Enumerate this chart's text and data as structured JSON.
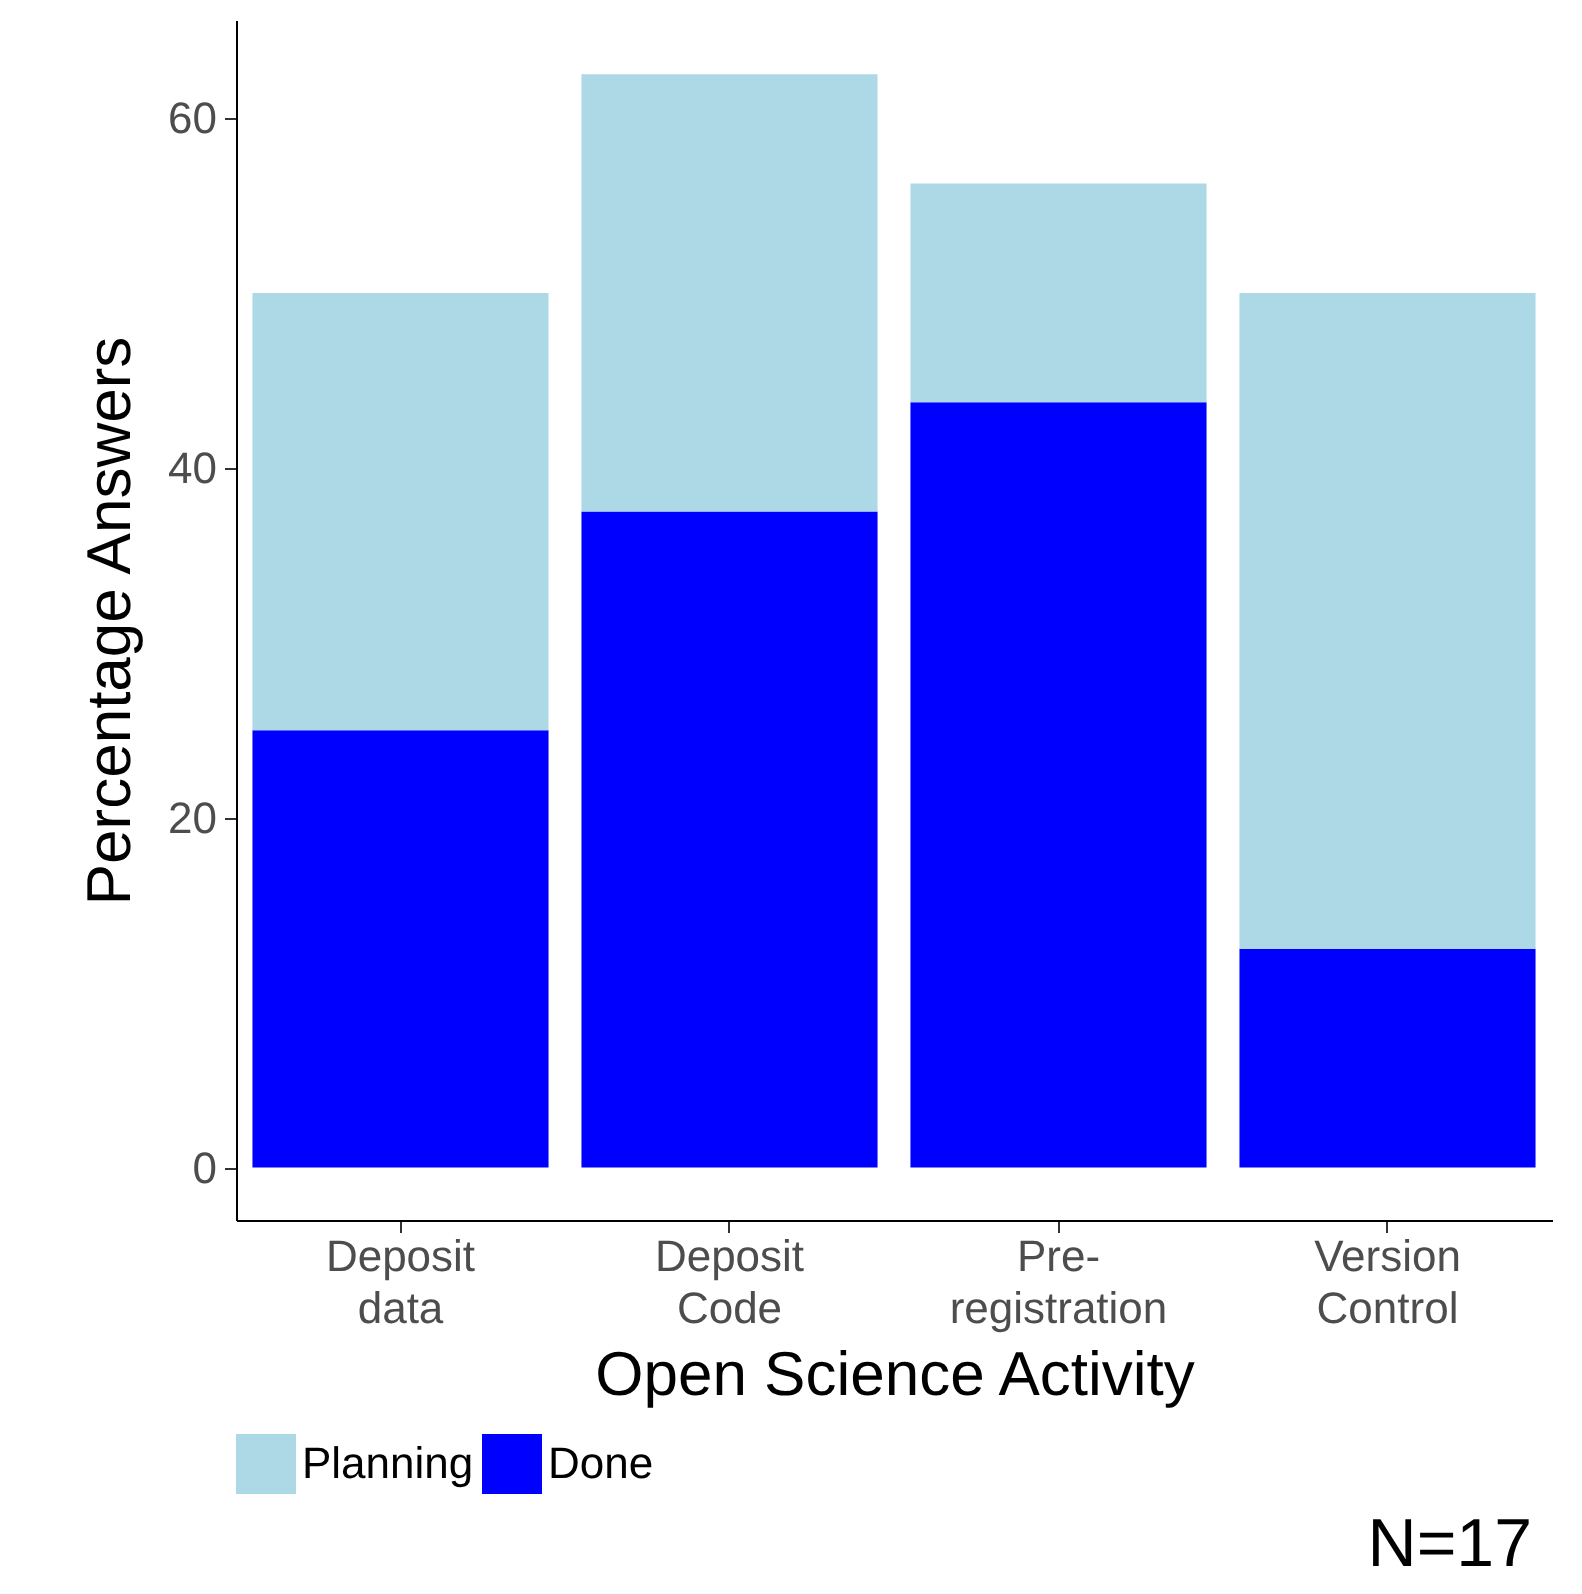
{
  "chart_data": {
    "type": "bar",
    "stacked": true,
    "xlabel": "Open Science Activity",
    "ylabel": "Percentage Answers",
    "categories": [
      "Deposit data",
      "Deposit Code",
      "Pre-registration",
      "Version Control"
    ],
    "series": [
      {
        "name": "Done",
        "color": "#0000ff",
        "values": [
          25,
          37.5,
          43.75,
          12.5
        ]
      },
      {
        "name": "Planning",
        "color": "#add8e6",
        "values": [
          25,
          25,
          12.5,
          37.5
        ]
      }
    ],
    "ylim": [
      -3,
      65.6
    ],
    "yticks": [
      0,
      20,
      40,
      60
    ],
    "grid": false,
    "legend": "bottom",
    "annotations": [
      "N=17"
    ]
  }
}
